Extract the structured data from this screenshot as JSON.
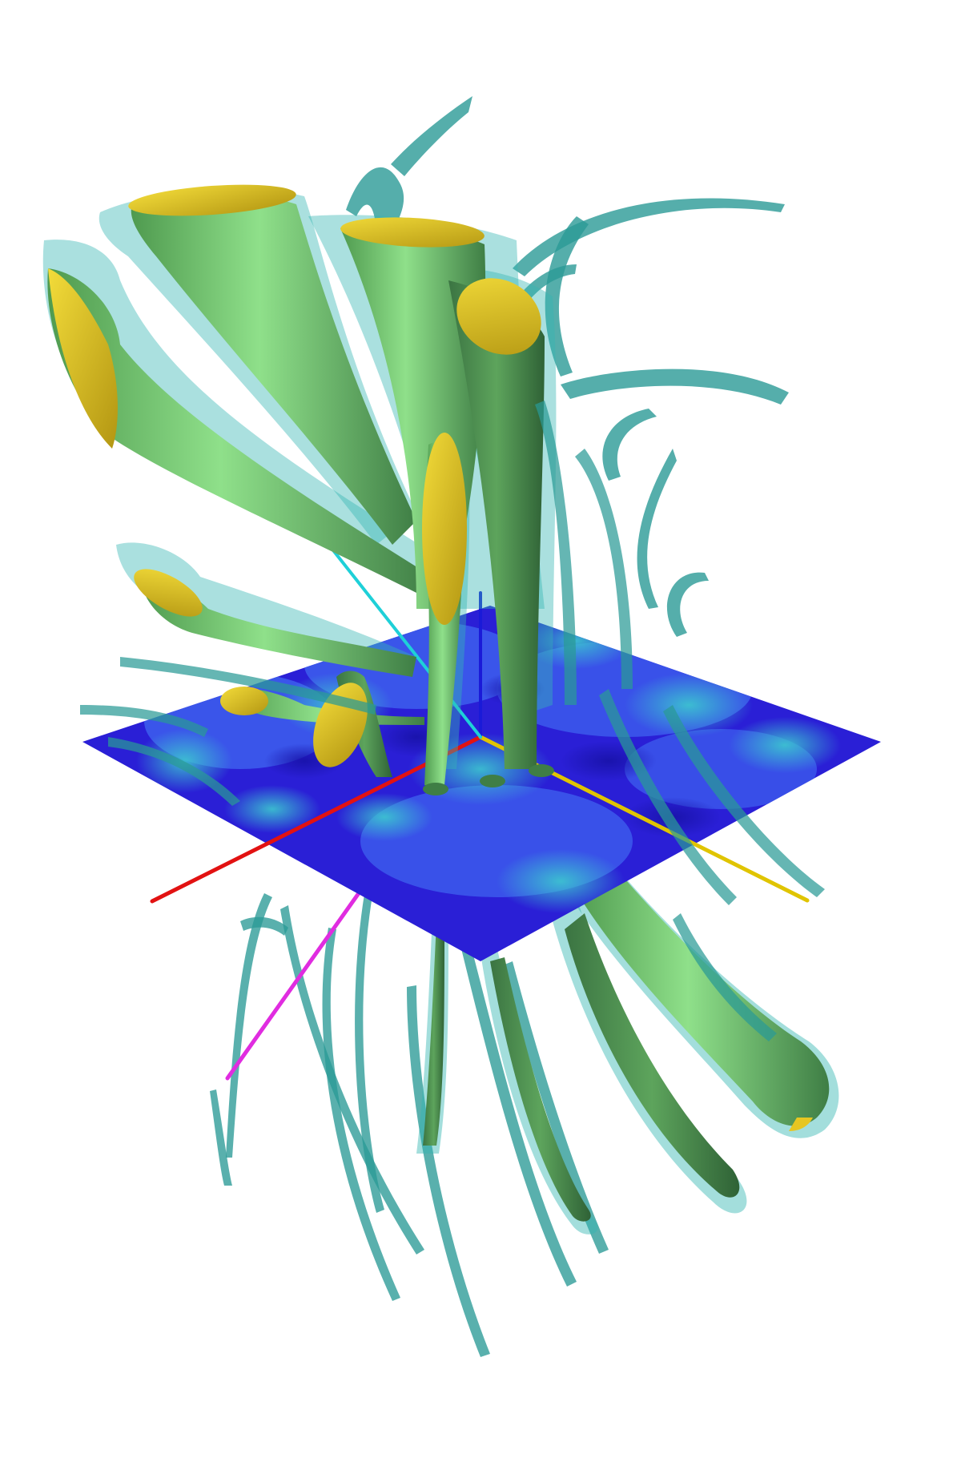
{
  "figure": {
    "background": "#ffffff",
    "colors": {
      "tube_green_light": "#8fe08a",
      "tube_green_dark": "#3f7e45",
      "tube_cap_yellow": "#e6c621",
      "sheath_cyan": "#34b6b2",
      "ribbon_teal": "#2a9a96",
      "plane_blue_deep": "#2a1fd6",
      "plane_blue_mid": "#3f63ef",
      "plane_cyan": "#3cc8cf",
      "axis_red": "#e21212",
      "axis_yellow": "#e0c400",
      "axis_blue": "#1a1ad8",
      "axis_cyan": "#1ed0d8",
      "axis_magenta": "#e02ce0"
    }
  }
}
